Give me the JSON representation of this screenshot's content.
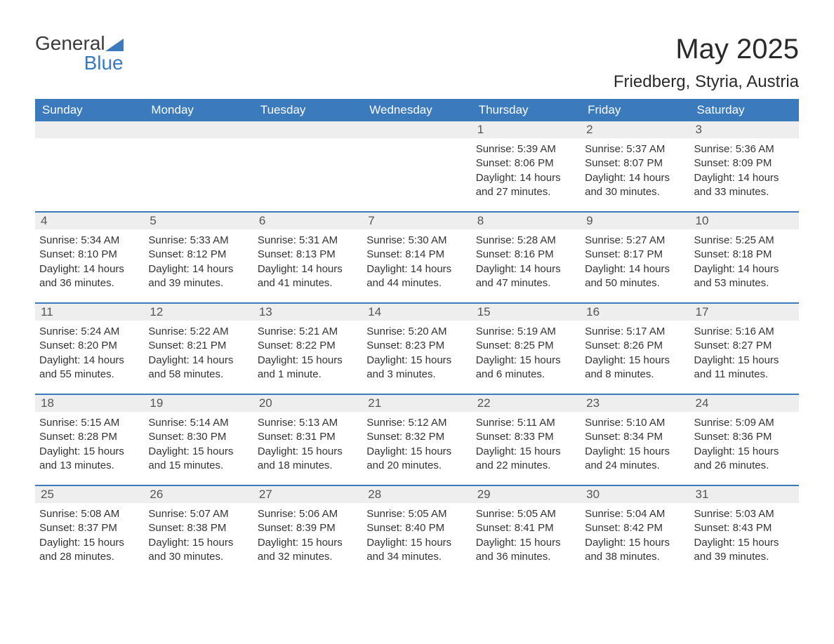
{
  "logo": {
    "word1": "General",
    "word2": "Blue"
  },
  "title": "May 2025",
  "location": "Friedberg, Styria, Austria",
  "colors": {
    "header_bg": "#3a7abd",
    "header_text": "#ffffff",
    "daynum_bg": "#eeeeee",
    "text": "#333333",
    "background": "#ffffff"
  },
  "daysOfWeek": [
    "Sunday",
    "Monday",
    "Tuesday",
    "Wednesday",
    "Thursday",
    "Friday",
    "Saturday"
  ],
  "weeks": [
    [
      {
        "n": "",
        "sr": "",
        "ss": "",
        "dl1": "",
        "dl2": ""
      },
      {
        "n": "",
        "sr": "",
        "ss": "",
        "dl1": "",
        "dl2": ""
      },
      {
        "n": "",
        "sr": "",
        "ss": "",
        "dl1": "",
        "dl2": ""
      },
      {
        "n": "",
        "sr": "",
        "ss": "",
        "dl1": "",
        "dl2": ""
      },
      {
        "n": "1",
        "sr": "Sunrise: 5:39 AM",
        "ss": "Sunset: 8:06 PM",
        "dl1": "Daylight: 14 hours",
        "dl2": "and 27 minutes."
      },
      {
        "n": "2",
        "sr": "Sunrise: 5:37 AM",
        "ss": "Sunset: 8:07 PM",
        "dl1": "Daylight: 14 hours",
        "dl2": "and 30 minutes."
      },
      {
        "n": "3",
        "sr": "Sunrise: 5:36 AM",
        "ss": "Sunset: 8:09 PM",
        "dl1": "Daylight: 14 hours",
        "dl2": "and 33 minutes."
      }
    ],
    [
      {
        "n": "4",
        "sr": "Sunrise: 5:34 AM",
        "ss": "Sunset: 8:10 PM",
        "dl1": "Daylight: 14 hours",
        "dl2": "and 36 minutes."
      },
      {
        "n": "5",
        "sr": "Sunrise: 5:33 AM",
        "ss": "Sunset: 8:12 PM",
        "dl1": "Daylight: 14 hours",
        "dl2": "and 39 minutes."
      },
      {
        "n": "6",
        "sr": "Sunrise: 5:31 AM",
        "ss": "Sunset: 8:13 PM",
        "dl1": "Daylight: 14 hours",
        "dl2": "and 41 minutes."
      },
      {
        "n": "7",
        "sr": "Sunrise: 5:30 AM",
        "ss": "Sunset: 8:14 PM",
        "dl1": "Daylight: 14 hours",
        "dl2": "and 44 minutes."
      },
      {
        "n": "8",
        "sr": "Sunrise: 5:28 AM",
        "ss": "Sunset: 8:16 PM",
        "dl1": "Daylight: 14 hours",
        "dl2": "and 47 minutes."
      },
      {
        "n": "9",
        "sr": "Sunrise: 5:27 AM",
        "ss": "Sunset: 8:17 PM",
        "dl1": "Daylight: 14 hours",
        "dl2": "and 50 minutes."
      },
      {
        "n": "10",
        "sr": "Sunrise: 5:25 AM",
        "ss": "Sunset: 8:18 PM",
        "dl1": "Daylight: 14 hours",
        "dl2": "and 53 minutes."
      }
    ],
    [
      {
        "n": "11",
        "sr": "Sunrise: 5:24 AM",
        "ss": "Sunset: 8:20 PM",
        "dl1": "Daylight: 14 hours",
        "dl2": "and 55 minutes."
      },
      {
        "n": "12",
        "sr": "Sunrise: 5:22 AM",
        "ss": "Sunset: 8:21 PM",
        "dl1": "Daylight: 14 hours",
        "dl2": "and 58 minutes."
      },
      {
        "n": "13",
        "sr": "Sunrise: 5:21 AM",
        "ss": "Sunset: 8:22 PM",
        "dl1": "Daylight: 15 hours",
        "dl2": "and 1 minute."
      },
      {
        "n": "14",
        "sr": "Sunrise: 5:20 AM",
        "ss": "Sunset: 8:23 PM",
        "dl1": "Daylight: 15 hours",
        "dl2": "and 3 minutes."
      },
      {
        "n": "15",
        "sr": "Sunrise: 5:19 AM",
        "ss": "Sunset: 8:25 PM",
        "dl1": "Daylight: 15 hours",
        "dl2": "and 6 minutes."
      },
      {
        "n": "16",
        "sr": "Sunrise: 5:17 AM",
        "ss": "Sunset: 8:26 PM",
        "dl1": "Daylight: 15 hours",
        "dl2": "and 8 minutes."
      },
      {
        "n": "17",
        "sr": "Sunrise: 5:16 AM",
        "ss": "Sunset: 8:27 PM",
        "dl1": "Daylight: 15 hours",
        "dl2": "and 11 minutes."
      }
    ],
    [
      {
        "n": "18",
        "sr": "Sunrise: 5:15 AM",
        "ss": "Sunset: 8:28 PM",
        "dl1": "Daylight: 15 hours",
        "dl2": "and 13 minutes."
      },
      {
        "n": "19",
        "sr": "Sunrise: 5:14 AM",
        "ss": "Sunset: 8:30 PM",
        "dl1": "Daylight: 15 hours",
        "dl2": "and 15 minutes."
      },
      {
        "n": "20",
        "sr": "Sunrise: 5:13 AM",
        "ss": "Sunset: 8:31 PM",
        "dl1": "Daylight: 15 hours",
        "dl2": "and 18 minutes."
      },
      {
        "n": "21",
        "sr": "Sunrise: 5:12 AM",
        "ss": "Sunset: 8:32 PM",
        "dl1": "Daylight: 15 hours",
        "dl2": "and 20 minutes."
      },
      {
        "n": "22",
        "sr": "Sunrise: 5:11 AM",
        "ss": "Sunset: 8:33 PM",
        "dl1": "Daylight: 15 hours",
        "dl2": "and 22 minutes."
      },
      {
        "n": "23",
        "sr": "Sunrise: 5:10 AM",
        "ss": "Sunset: 8:34 PM",
        "dl1": "Daylight: 15 hours",
        "dl2": "and 24 minutes."
      },
      {
        "n": "24",
        "sr": "Sunrise: 5:09 AM",
        "ss": "Sunset: 8:36 PM",
        "dl1": "Daylight: 15 hours",
        "dl2": "and 26 minutes."
      }
    ],
    [
      {
        "n": "25",
        "sr": "Sunrise: 5:08 AM",
        "ss": "Sunset: 8:37 PM",
        "dl1": "Daylight: 15 hours",
        "dl2": "and 28 minutes."
      },
      {
        "n": "26",
        "sr": "Sunrise: 5:07 AM",
        "ss": "Sunset: 8:38 PM",
        "dl1": "Daylight: 15 hours",
        "dl2": "and 30 minutes."
      },
      {
        "n": "27",
        "sr": "Sunrise: 5:06 AM",
        "ss": "Sunset: 8:39 PM",
        "dl1": "Daylight: 15 hours",
        "dl2": "and 32 minutes."
      },
      {
        "n": "28",
        "sr": "Sunrise: 5:05 AM",
        "ss": "Sunset: 8:40 PM",
        "dl1": "Daylight: 15 hours",
        "dl2": "and 34 minutes."
      },
      {
        "n": "29",
        "sr": "Sunrise: 5:05 AM",
        "ss": "Sunset: 8:41 PM",
        "dl1": "Daylight: 15 hours",
        "dl2": "and 36 minutes."
      },
      {
        "n": "30",
        "sr": "Sunrise: 5:04 AM",
        "ss": "Sunset: 8:42 PM",
        "dl1": "Daylight: 15 hours",
        "dl2": "and 38 minutes."
      },
      {
        "n": "31",
        "sr": "Sunrise: 5:03 AM",
        "ss": "Sunset: 8:43 PM",
        "dl1": "Daylight: 15 hours",
        "dl2": "and 39 minutes."
      }
    ]
  ]
}
